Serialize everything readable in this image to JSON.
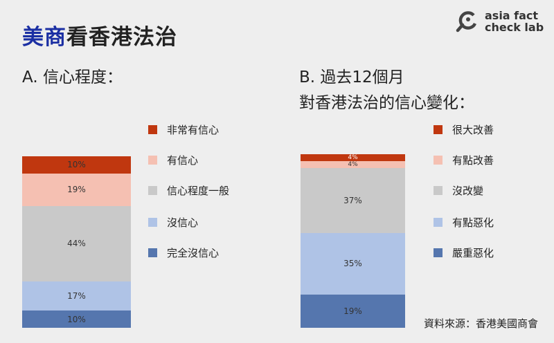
{
  "title": {
    "highlight": "美商",
    "rest": "看香港法治"
  },
  "logo": {
    "line1": "asia fact",
    "line2": "check lab"
  },
  "source": "資料來源：香港美國商會",
  "chart_data": [
    {
      "type": "bar",
      "stacked": true,
      "title": "A. 信心程度：",
      "title_lines": [
        "A. 信心程度："
      ],
      "legend_position": "right",
      "series": [
        {
          "name": "非常有信心",
          "value": 10,
          "label": "10%",
          "color": "#c0370f"
        },
        {
          "name": "有信心",
          "value": 19,
          "label": "19%",
          "color": "#f5c0b2"
        },
        {
          "name": "信心程度一般",
          "value": 44,
          "label": "44%",
          "color": "#c9c9c9"
        },
        {
          "name": "沒信心",
          "value": 17,
          "label": "17%",
          "color": "#afc3e6"
        },
        {
          "name": "完全沒信心",
          "value": 10,
          "label": "10%",
          "color": "#5576ae"
        }
      ]
    },
    {
      "type": "bar",
      "stacked": true,
      "title": "B. 過去12個月 對香港法治的信心變化：",
      "title_lines": [
        "B. 過去12個月",
        "對香港法治的信心變化："
      ],
      "legend_position": "right",
      "series": [
        {
          "name": "很大改善",
          "value": 4,
          "label": "4%",
          "color": "#c0370f"
        },
        {
          "name": "有點改善",
          "value": 4,
          "label": "4%",
          "color": "#f5c0b2"
        },
        {
          "name": "沒改變",
          "value": 37,
          "label": "37%",
          "color": "#c9c9c9"
        },
        {
          "name": "有點惡化",
          "value": 35,
          "label": "35%",
          "color": "#afc3e6"
        },
        {
          "name": "嚴重惡化",
          "value": 19,
          "label": "19%",
          "color": "#5576ae"
        }
      ]
    }
  ]
}
